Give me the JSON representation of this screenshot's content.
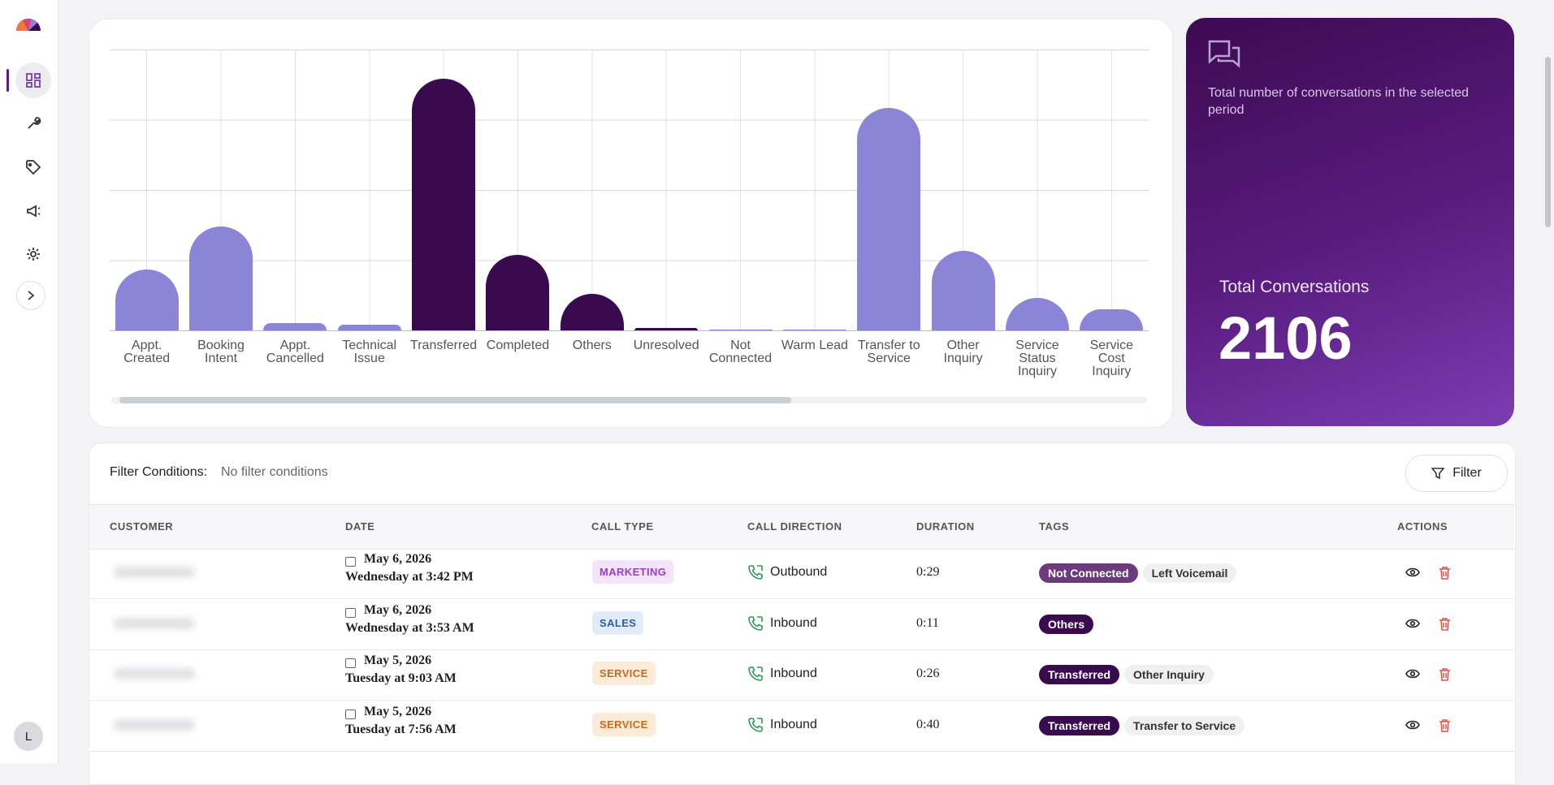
{
  "chart_data": {
    "type": "bar",
    "categories": [
      "Appt. Created",
      "Booking Intent",
      "Appt. Cancelled",
      "Technical Issue",
      "Transferred",
      "Completed",
      "Others",
      "Unresolved",
      "Not Connected",
      "Warm Lead",
      "Transfer to Service",
      "Other Inquiry",
      "Service Status Inquiry",
      "Service Cost Inquiry"
    ],
    "values": [
      87,
      148,
      10,
      8,
      358,
      108,
      52,
      4,
      1.5,
      1,
      317,
      113,
      46,
      30
    ],
    "colors": [
      "#8b84d7",
      "#8b84d7",
      "#8b84d7",
      "#8b84d7",
      "#3a0a4f",
      "#3a0a4f",
      "#3a0a4f",
      "#3a0a4f",
      "#8b84d7",
      "#8b84d7",
      "#8b84d7",
      "#8b84d7",
      "#8b84d7",
      "#8b84d7"
    ],
    "ylim": [
      0,
      400
    ],
    "grid": true
  },
  "summary": {
    "description": "Total number of conversations in the selected period",
    "label": "Total Conversations",
    "value": 2106
  },
  "filter": {
    "label": "Filter Conditions:",
    "value": "No filter conditions",
    "button": "Filter"
  },
  "table": {
    "columns": [
      "CUSTOMER",
      "DATE",
      "CALL TYPE",
      "CALL DIRECTION",
      "DURATION",
      "TAGS",
      "ACTIONS"
    ],
    "rows": [
      {
        "date": "May 6, 2026",
        "time": "Wednesday at 3:42 PM",
        "call_type": {
          "text": "MARKETING",
          "bg": "#f3e3fb",
          "fg": "#9b3fc0"
        },
        "direction": "Outbound",
        "duration": "0:29",
        "tags": [
          {
            "text": "Not Connected",
            "bg": "#6b3b7e",
            "fg": "#ffffff"
          },
          {
            "text": "Left Voicemail",
            "bg": "#eef0f2",
            "fg": "#333333"
          }
        ]
      },
      {
        "date": "May 6, 2026",
        "time": "Wednesday at 3:53 AM",
        "call_type": {
          "text": "SALES",
          "bg": "#e1ecfa",
          "fg": "#2d5ea8"
        },
        "direction": "Inbound",
        "duration": "0:11",
        "tags": [
          {
            "text": "Others",
            "bg": "#3a0a4f",
            "fg": "#ffffff"
          }
        ]
      },
      {
        "date": "May 5, 2026",
        "time": "Tuesday at 9:03 AM",
        "call_type": {
          "text": "SERVICE",
          "bg": "#fdebd9",
          "fg": "#c86a1c"
        },
        "direction": "Inbound",
        "duration": "0:26",
        "tags": [
          {
            "text": "Transferred",
            "bg": "#3a0a4f",
            "fg": "#ffffff"
          },
          {
            "text": "Other Inquiry",
            "bg": "#eef0f2",
            "fg": "#333333"
          }
        ]
      },
      {
        "date": "May 5, 2026",
        "time": "Tuesday at 7:56 AM",
        "call_type": {
          "text": "SERVICE",
          "bg": "#fdebd9",
          "fg": "#c86a1c"
        },
        "direction": "Inbound",
        "duration": "0:40",
        "tags": [
          {
            "text": "Transferred",
            "bg": "#3a0a4f",
            "fg": "#ffffff"
          },
          {
            "text": "Transfer to Service",
            "bg": "#eef0f2",
            "fg": "#333333"
          }
        ]
      }
    ]
  },
  "user": {
    "initial": "L"
  }
}
